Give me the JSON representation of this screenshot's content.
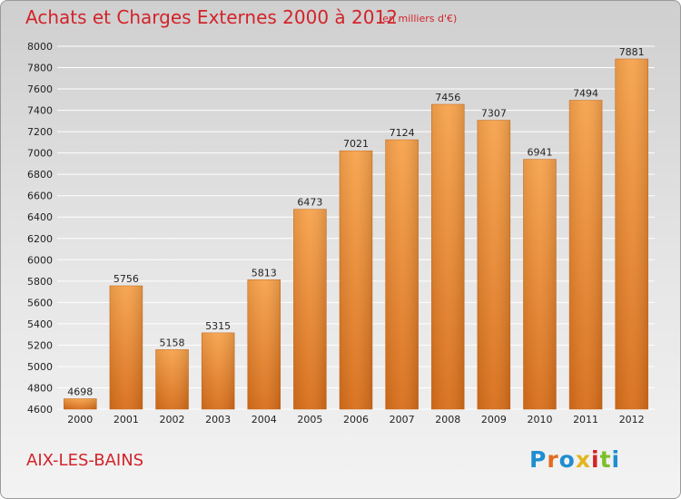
{
  "header": {
    "title": "Achats et Charges Externes 2000 à 2012",
    "unit": "(en milliers d'€)"
  },
  "footer": {
    "city": "AIX-LES-BAINS",
    "logo": "Proxiti"
  },
  "colors": {
    "title": "#d2232a",
    "bar_light": "#f7a34c",
    "bar_dark": "#d86e1a",
    "grid": "#ffffff"
  },
  "chart_data": {
    "type": "bar",
    "title": "Achats et Charges Externes 2000 à 2012",
    "subtitle": "(en milliers d'€)",
    "categories": [
      "2000",
      "2001",
      "2002",
      "2003",
      "2004",
      "2005",
      "2006",
      "2007",
      "2008",
      "2009",
      "2010",
      "2011",
      "2012"
    ],
    "values": [
      4698,
      5756,
      5158,
      5315,
      5813,
      6473,
      7021,
      7124,
      7456,
      7307,
      6941,
      7494,
      7881
    ],
    "ylim": [
      4600,
      8000
    ],
    "yticks": [
      4600,
      4800,
      5000,
      5200,
      5400,
      5600,
      5800,
      6000,
      6200,
      6400,
      6600,
      6800,
      7000,
      7200,
      7400,
      7600,
      7800,
      8000
    ],
    "grid": true,
    "data_labels": true
  }
}
